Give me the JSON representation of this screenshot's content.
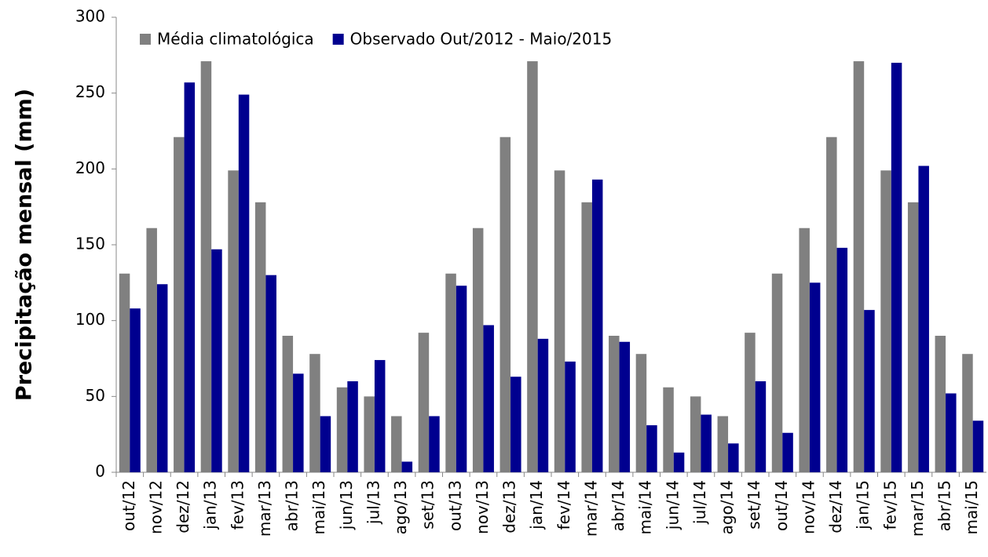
{
  "chart_data": {
    "type": "bar",
    "ylabel": "Precipitação mensal (mm)",
    "categories": [
      "out/12",
      "nov/12",
      "dez/12",
      "jan/13",
      "fev/13",
      "mar/13",
      "abr/13",
      "mai/13",
      "jun/13",
      "jul/13",
      "ago/13",
      "set/13",
      "out/13",
      "nov/13",
      "dez/13",
      "jan/14",
      "fev/14",
      "mar/14",
      "abr/14",
      "mai/14",
      "jun/14",
      "jul/14",
      "ago/14",
      "set/14",
      "out/14",
      "nov/14",
      "dez/14",
      "jan/15",
      "fev/15",
      "mar/15",
      "abr/15",
      "mai/15"
    ],
    "series": [
      {
        "name": "Média climatológica",
        "color": "#808080",
        "values": [
          131,
          161,
          221,
          271,
          199,
          178,
          90,
          78,
          56,
          50,
          37,
          92,
          131,
          161,
          221,
          271,
          199,
          178,
          90,
          78,
          56,
          50,
          37,
          92,
          131,
          161,
          221,
          271,
          199,
          178,
          90,
          78
        ]
      },
      {
        "name": "Observado Out/2012 - Maio/2015",
        "color": "#00008f",
        "values": [
          108,
          124,
          257,
          147,
          249,
          130,
          65,
          37,
          60,
          74,
          7,
          37,
          123,
          97,
          63,
          88,
          73,
          193,
          86,
          31,
          13,
          38,
          19,
          60,
          26,
          125,
          148,
          107,
          270,
          202,
          52,
          34
        ]
      }
    ],
    "ylim": [
      0,
      300
    ],
    "yticks": [
      0,
      50,
      100,
      150,
      200,
      250,
      300
    ],
    "legend": "top-left",
    "grid": false
  }
}
